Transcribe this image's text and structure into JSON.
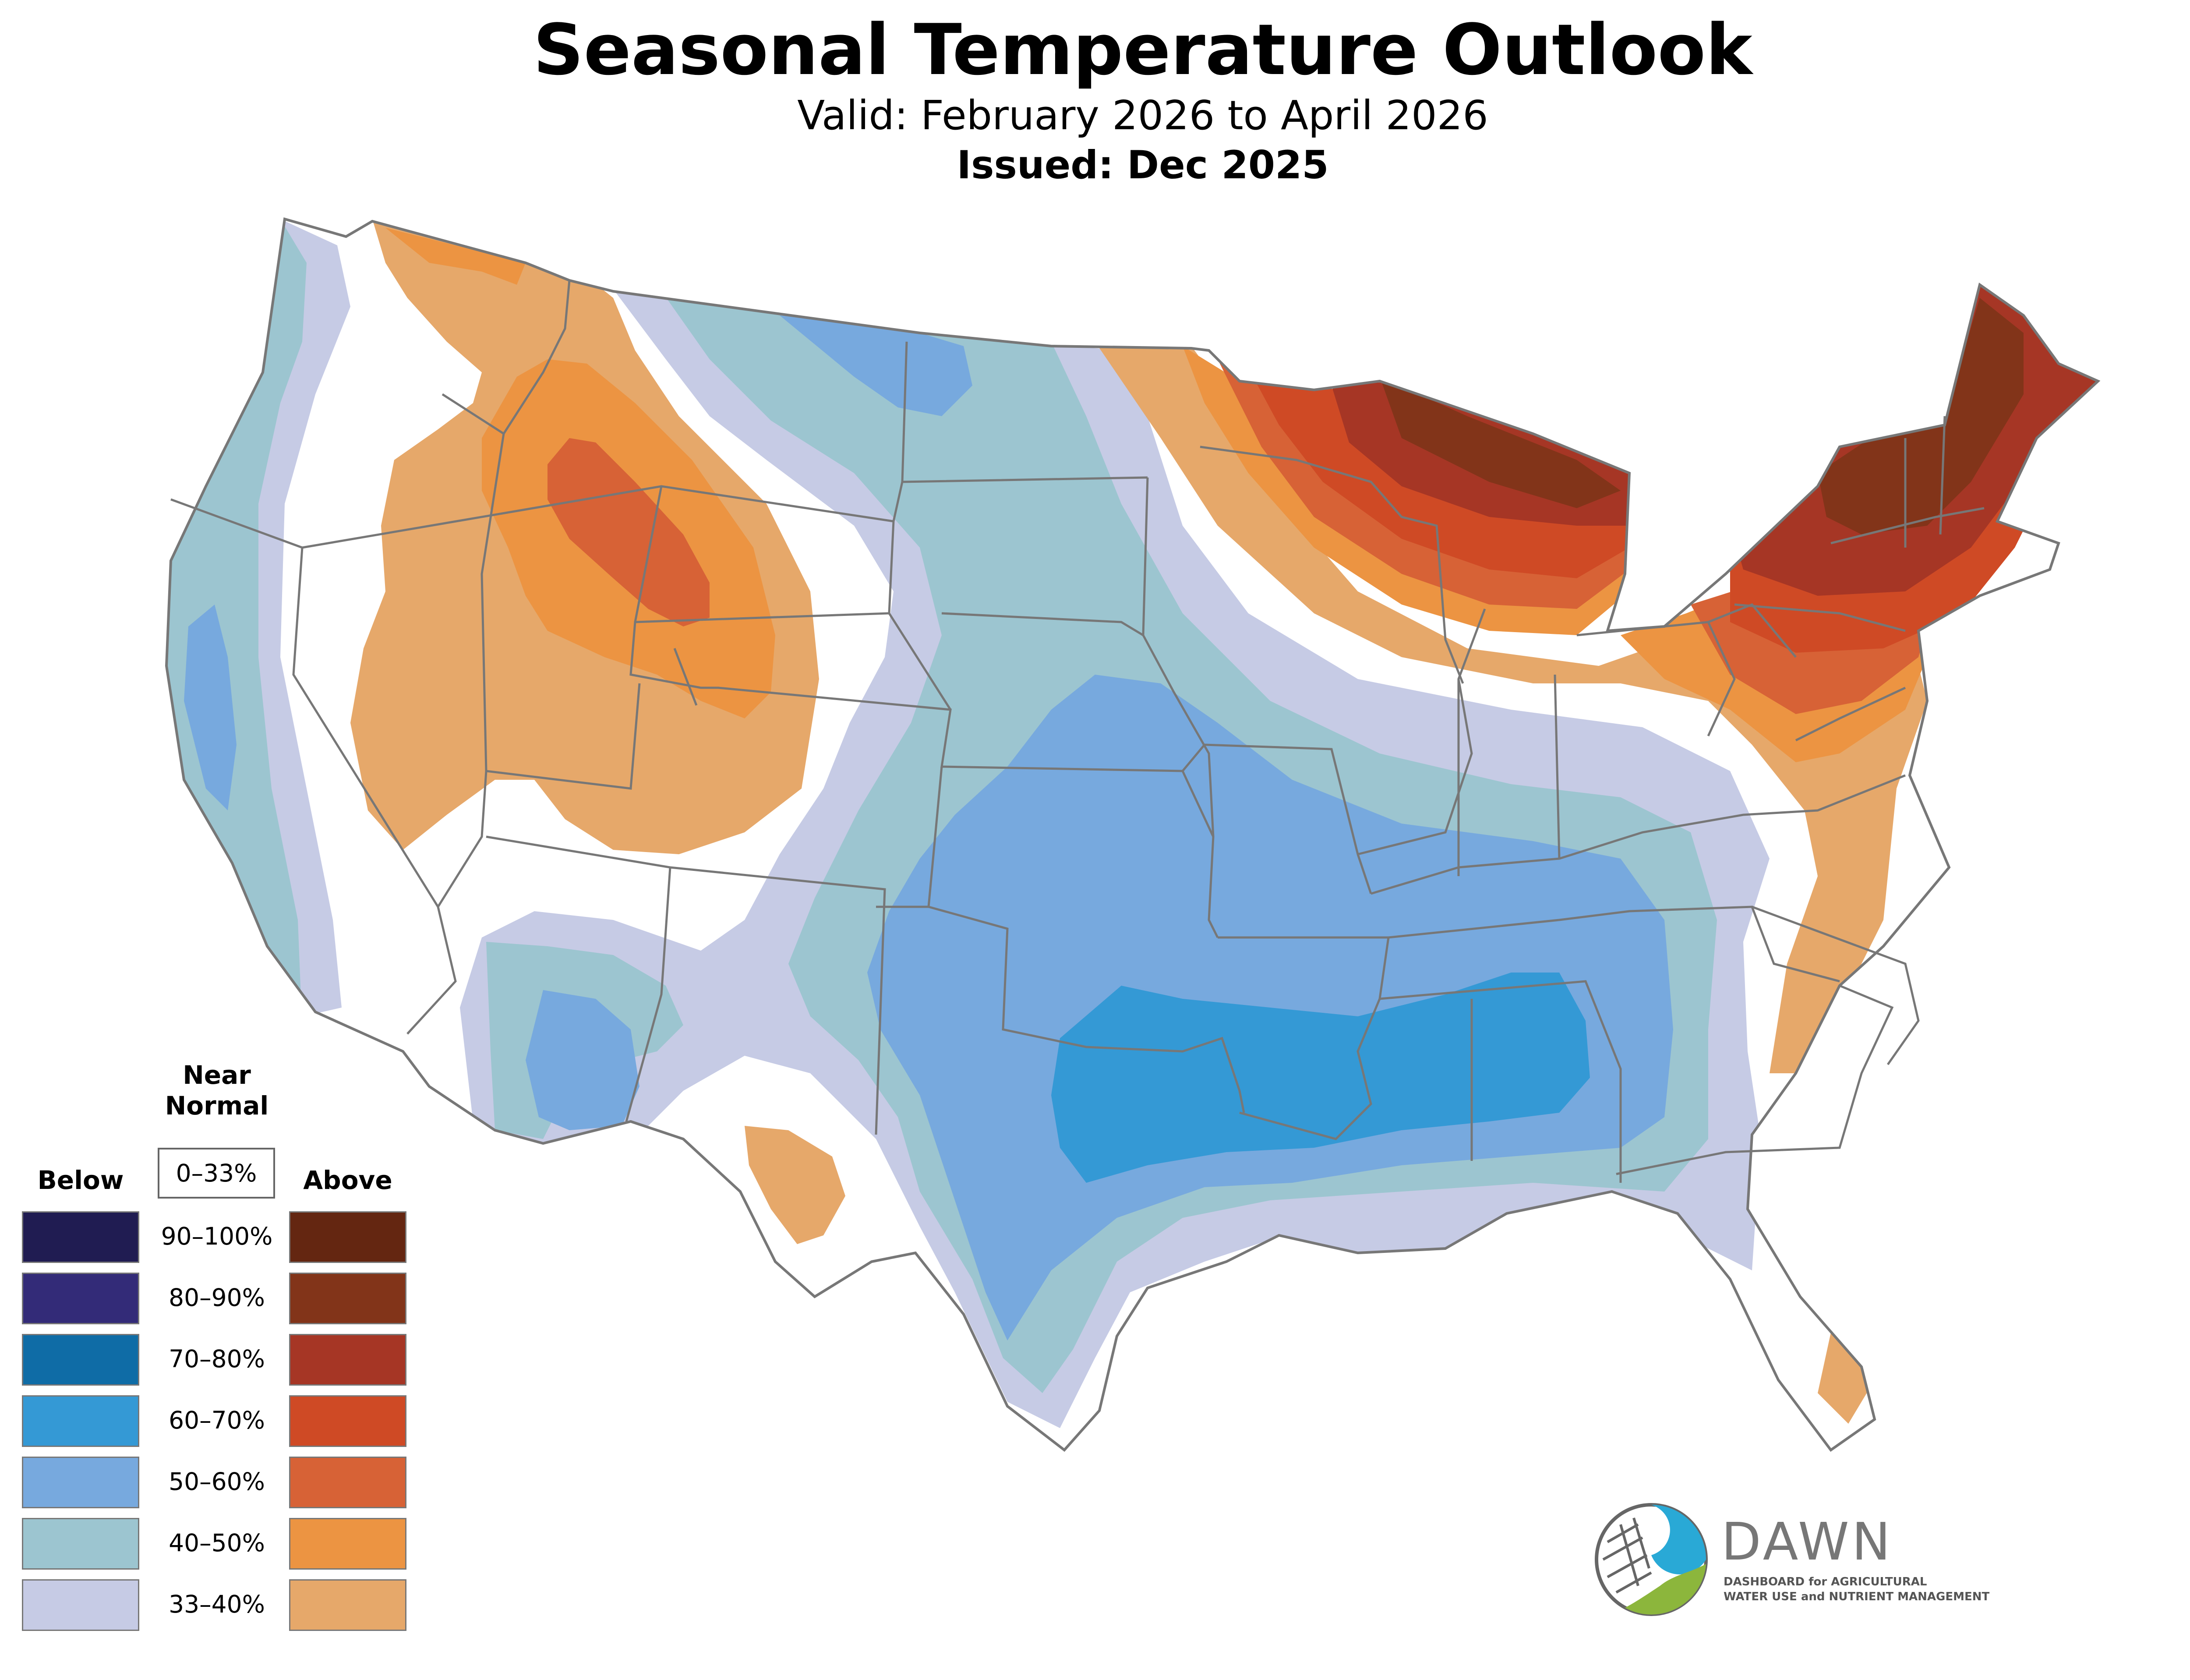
{
  "title": "Seasonal Temperature Outlook",
  "valid": "Valid: February 2026 to April 2026",
  "issued": "Issued: Dec 2025",
  "legend": {
    "below_label": "Below",
    "near_normal_line1": "Near",
    "near_normal_line2": "Normal",
    "near_normal_range": "0–33%",
    "above_label": "Above",
    "ranges": [
      "90–100%",
      "80–90%",
      "70–80%",
      "60–70%",
      "50–60%",
      "40–50%",
      "33–40%"
    ],
    "below_colors": [
      "#201c52",
      "#332b78",
      "#0f6ca6",
      "#3499d5",
      "#77a9de",
      "#9cc5d0",
      "#c6cbe5"
    ],
    "above_colors": [
      "#642611",
      "#823419",
      "#a63625",
      "#cf4a25",
      "#d76236",
      "#ec9442",
      "#e6a86a"
    ]
  },
  "map": {
    "outline_color": "#777777",
    "icons": [
      "usa-outline",
      "state-borders",
      "great-lakes"
    ],
    "regions": [
      {
        "category": "above",
        "range": "33–40%"
      },
      {
        "category": "above",
        "range": "40–50%"
      },
      {
        "category": "above",
        "range": "50–60%"
      },
      {
        "category": "above",
        "range": "60–70%"
      },
      {
        "category": "above",
        "range": "70–80%"
      },
      {
        "category": "above",
        "range": "80–90%"
      },
      {
        "category": "below",
        "range": "33–40%"
      },
      {
        "category": "below",
        "range": "40–50%"
      },
      {
        "category": "below",
        "range": "50–60%"
      },
      {
        "category": "below",
        "range": "60–70%"
      }
    ]
  },
  "logo": {
    "name": "DAWN",
    "tagline_line1": "DASHBOARD for AGRICULTURAL",
    "tagline_line2": "WATER USE and NUTRIENT MANAGEMENT",
    "colors": [
      "#29a9d6",
      "#8cb63c",
      "#666666"
    ]
  }
}
